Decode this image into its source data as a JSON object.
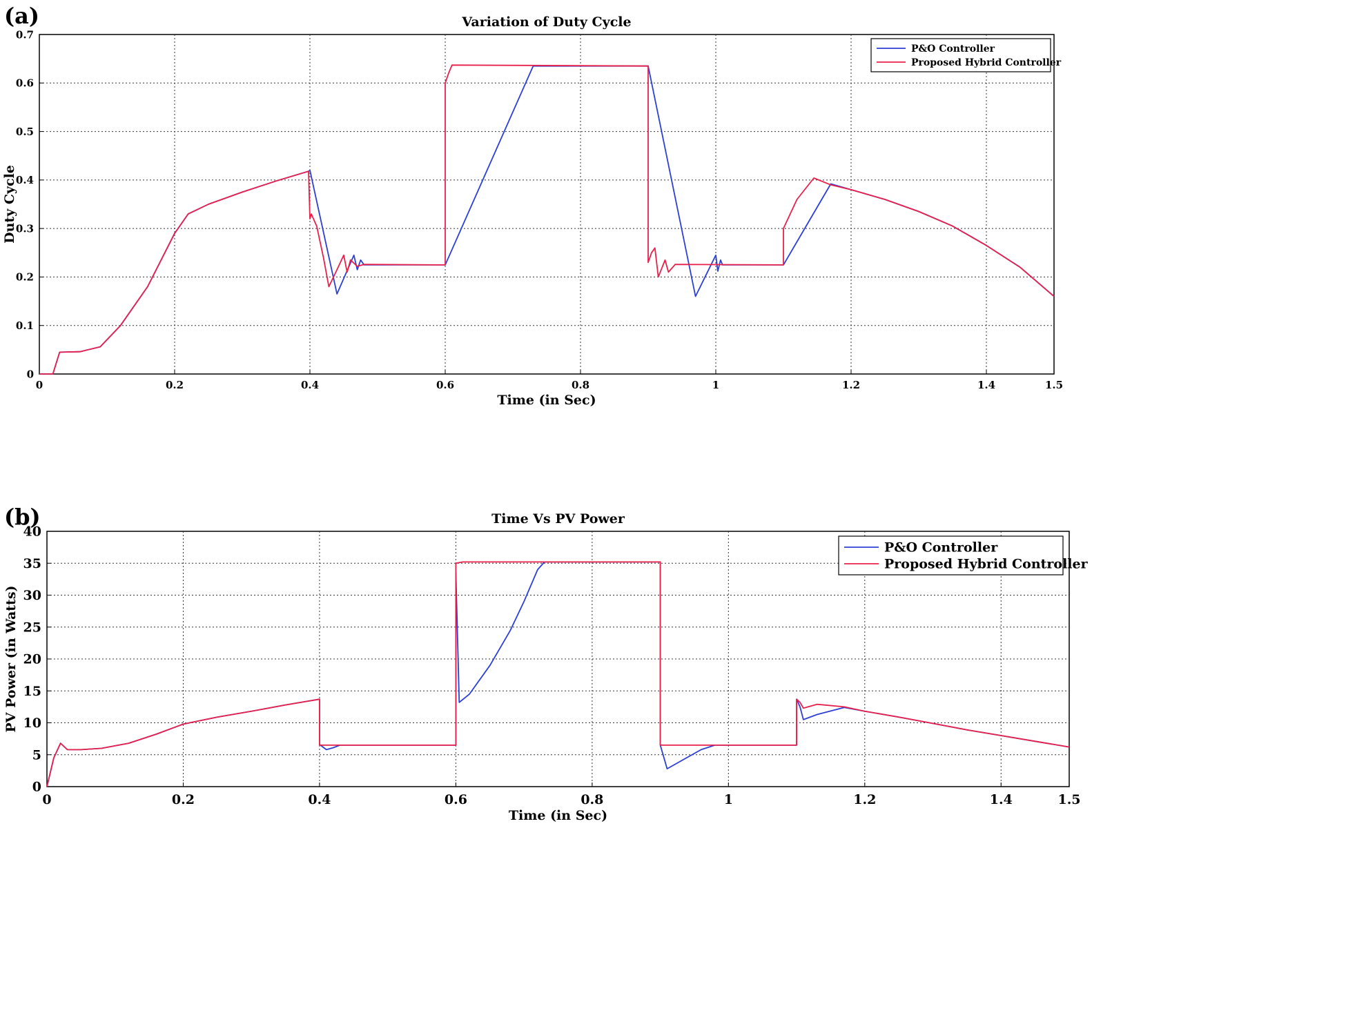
{
  "chart_data": [
    {
      "panel_label": "(a)",
      "type": "line",
      "title": "Variation of Duty Cycle",
      "xlabel": "Time (in Sec)",
      "ylabel": "Duty Cycle",
      "xlim": [
        0,
        1.5
      ],
      "ylim": [
        0,
        0.7
      ],
      "xticks": [
        0,
        0.2,
        0.4,
        0.6,
        0.8,
        1,
        1.2,
        1.4,
        1.5
      ],
      "xtick_labels": [
        "0",
        "0.2",
        "0.4",
        "0.6",
        "0.8",
        "1",
        "1.2",
        "1.4",
        "1.5"
      ],
      "yticks": [
        0,
        0.1,
        0.2,
        0.3,
        0.4,
        0.5,
        0.6,
        0.7
      ],
      "ytick_labels": [
        "0",
        "0.1",
        "0.2",
        "0.3",
        "0.4",
        "0.5",
        "0.6",
        "0.7"
      ],
      "grid": true,
      "legend_position": "top-right",
      "series": [
        {
          "name": "P&O Controller",
          "color": "#2b3fd6",
          "points": [
            [
              0,
              0
            ],
            [
              0.02,
              0
            ],
            [
              0.03,
              0.045
            ],
            [
              0.06,
              0.046
            ],
            [
              0.09,
              0.056
            ],
            [
              0.12,
              0.1
            ],
            [
              0.16,
              0.18
            ],
            [
              0.2,
              0.29
            ],
            [
              0.22,
              0.33
            ],
            [
              0.25,
              0.35
            ],
            [
              0.3,
              0.375
            ],
            [
              0.35,
              0.398
            ],
            [
              0.398,
              0.418
            ],
            [
              0.4,
              0.42
            ],
            [
              0.44,
              0.165
            ],
            [
              0.465,
              0.245
            ],
            [
              0.47,
              0.215
            ],
            [
              0.475,
              0.235
            ],
            [
              0.48,
              0.225
            ],
            [
              0.6,
              0.225
            ],
            [
              0.73,
              0.635
            ],
            [
              0.9,
              0.635
            ],
            [
              0.97,
              0.16
            ],
            [
              1.0,
              0.245
            ],
            [
              1.003,
              0.212
            ],
            [
              1.007,
              0.235
            ],
            [
              1.01,
              0.225
            ],
            [
              1.1,
              0.225
            ],
            [
              1.17,
              0.392
            ],
            [
              1.2,
              0.38
            ],
            [
              1.25,
              0.36
            ],
            [
              1.3,
              0.335
            ],
            [
              1.35,
              0.305
            ],
            [
              1.4,
              0.265
            ],
            [
              1.45,
              0.22
            ],
            [
              1.5,
              0.16
            ]
          ]
        },
        {
          "name": "Proposed Hybrid Controller",
          "color": "#e8204a",
          "points": [
            [
              0,
              0
            ],
            [
              0.02,
              0
            ],
            [
              0.03,
              0.045
            ],
            [
              0.06,
              0.046
            ],
            [
              0.09,
              0.056
            ],
            [
              0.12,
              0.1
            ],
            [
              0.16,
              0.18
            ],
            [
              0.2,
              0.29
            ],
            [
              0.22,
              0.33
            ],
            [
              0.25,
              0.35
            ],
            [
              0.3,
              0.375
            ],
            [
              0.35,
              0.398
            ],
            [
              0.398,
              0.418
            ],
            [
              0.4,
              0.32
            ],
            [
              0.402,
              0.33
            ],
            [
              0.41,
              0.305
            ],
            [
              0.42,
              0.24
            ],
            [
              0.428,
              0.18
            ],
            [
              0.44,
              0.215
            ],
            [
              0.45,
              0.245
            ],
            [
              0.455,
              0.21
            ],
            [
              0.46,
              0.235
            ],
            [
              0.47,
              0.222
            ],
            [
              0.48,
              0.226
            ],
            [
              0.6,
              0.225
            ],
            [
              0.6,
              0.6
            ],
            [
              0.605,
              0.62
            ],
            [
              0.61,
              0.637
            ],
            [
              0.9,
              0.635
            ],
            [
              0.9,
              0.23
            ],
            [
              0.905,
              0.25
            ],
            [
              0.91,
              0.26
            ],
            [
              0.915,
              0.2
            ],
            [
              0.925,
              0.235
            ],
            [
              0.93,
              0.21
            ],
            [
              0.94,
              0.226
            ],
            [
              1.1,
              0.225
            ],
            [
              1.1,
              0.3
            ],
            [
              1.12,
              0.36
            ],
            [
              1.145,
              0.404
            ],
            [
              1.17,
              0.39
            ],
            [
              1.2,
              0.38
            ],
            [
              1.25,
              0.36
            ],
            [
              1.3,
              0.335
            ],
            [
              1.35,
              0.305
            ],
            [
              1.4,
              0.265
            ],
            [
              1.45,
              0.22
            ],
            [
              1.5,
              0.16
            ]
          ]
        }
      ]
    },
    {
      "panel_label": "(b)",
      "type": "line",
      "title": "Time Vs PV Power",
      "xlabel": "Time (in Sec)",
      "ylabel": "PV Power (in Watts)",
      "xlim": [
        0,
        1.5
      ],
      "ylim": [
        0,
        40
      ],
      "xticks": [
        0,
        0.2,
        0.4,
        0.6,
        0.8,
        1,
        1.2,
        1.4,
        1.5
      ],
      "xtick_labels": [
        "0",
        "0.2",
        "0.4",
        "0.6",
        "0.8",
        "1",
        "1.2",
        "1.4",
        "1.5"
      ],
      "yticks": [
        0,
        5,
        10,
        15,
        20,
        25,
        30,
        35,
        40
      ],
      "ytick_labels": [
        "0",
        "5",
        "10",
        "15",
        "20",
        "25",
        "30",
        "35",
        "40"
      ],
      "grid": true,
      "legend_position": "top-right",
      "series": [
        {
          "name": "P&O Controller",
          "color": "#2b3fd6",
          "points": [
            [
              0,
              0
            ],
            [
              0.01,
              4.5
            ],
            [
              0.02,
              6.8
            ],
            [
              0.03,
              5.8
            ],
            [
              0.05,
              5.8
            ],
            [
              0.08,
              6.0
            ],
            [
              0.12,
              6.8
            ],
            [
              0.16,
              8.2
            ],
            [
              0.2,
              9.8
            ],
            [
              0.25,
              10.9
            ],
            [
              0.3,
              11.8
            ],
            [
              0.35,
              12.8
            ],
            [
              0.4,
              13.7
            ],
            [
              0.4,
              6.6
            ],
            [
              0.41,
              5.8
            ],
            [
              0.42,
              6.1
            ],
            [
              0.43,
              6.5
            ],
            [
              0.6,
              6.5
            ],
            [
              0.6,
              33.5
            ],
            [
              0.605,
              13.2
            ],
            [
              0.62,
              14.5
            ],
            [
              0.65,
              19
            ],
            [
              0.68,
              24.5
            ],
            [
              0.7,
              29
            ],
            [
              0.72,
              34
            ],
            [
              0.73,
              35.2
            ],
            [
              0.9,
              35.2
            ],
            [
              0.9,
              6.5
            ],
            [
              0.91,
              2.8
            ],
            [
              0.93,
              4
            ],
            [
              0.96,
              5.8
            ],
            [
              0.98,
              6.5
            ],
            [
              1.1,
              6.5
            ],
            [
              1.1,
              13.7
            ],
            [
              1.105,
              12.5
            ],
            [
              1.11,
              10.5
            ],
            [
              1.13,
              11.3
            ],
            [
              1.17,
              12.4
            ],
            [
              1.2,
              11.8
            ],
            [
              1.25,
              10.9
            ],
            [
              1.3,
              9.9
            ],
            [
              1.35,
              8.9
            ],
            [
              1.4,
              8.0
            ],
            [
              1.45,
              7.1
            ],
            [
              1.5,
              6.2
            ]
          ]
        },
        {
          "name": "Proposed Hybrid Controller",
          "color": "#e8204a",
          "points": [
            [
              0,
              0
            ],
            [
              0.01,
              4.5
            ],
            [
              0.02,
              6.8
            ],
            [
              0.03,
              5.8
            ],
            [
              0.05,
              5.8
            ],
            [
              0.08,
              6.0
            ],
            [
              0.12,
              6.8
            ],
            [
              0.16,
              8.2
            ],
            [
              0.2,
              9.8
            ],
            [
              0.25,
              10.9
            ],
            [
              0.3,
              11.8
            ],
            [
              0.35,
              12.8
            ],
            [
              0.4,
              13.7
            ],
            [
              0.4,
              6.5
            ],
            [
              0.6,
              6.5
            ],
            [
              0.6,
              35
            ],
            [
              0.61,
              35.2
            ],
            [
              0.9,
              35.2
            ],
            [
              0.9,
              6.5
            ],
            [
              1.1,
              6.5
            ],
            [
              1.1,
              13.7
            ],
            [
              1.105,
              13.2
            ],
            [
              1.11,
              12.3
            ],
            [
              1.13,
              12.9
            ],
            [
              1.17,
              12.5
            ],
            [
              1.2,
              11.8
            ],
            [
              1.25,
              10.9
            ],
            [
              1.3,
              9.9
            ],
            [
              1.35,
              8.9
            ],
            [
              1.4,
              8.0
            ],
            [
              1.45,
              7.1
            ],
            [
              1.5,
              6.2
            ]
          ]
        }
      ]
    }
  ]
}
